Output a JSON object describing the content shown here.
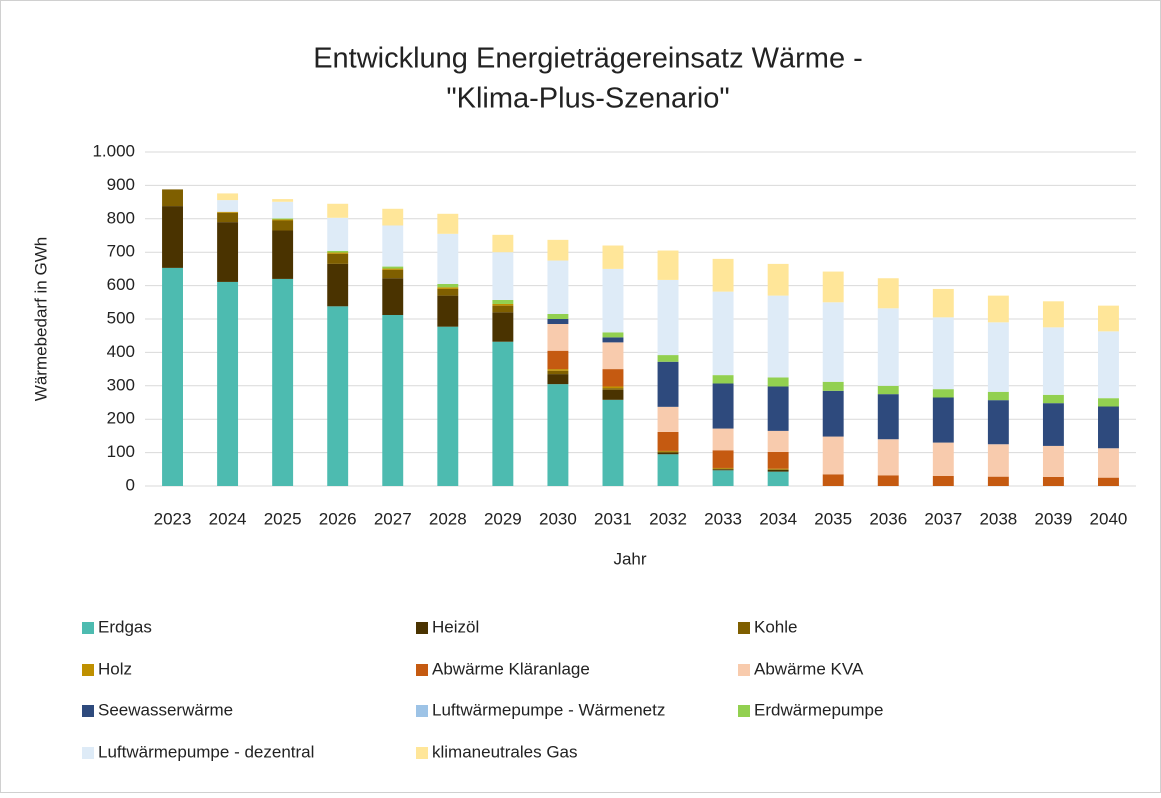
{
  "chart_data": {
    "type": "stacked_bar",
    "title": [
      "Entwicklung Energieträgereinsatz Wärme -",
      "\"Klima-Plus-Szenario\""
    ],
    "x_label": "Jahr",
    "y_label": "Wärmebedarf in GWh",
    "categories": [
      "2023",
      "2024",
      "2025",
      "2026",
      "2027",
      "2028",
      "2029",
      "2030",
      "2031",
      "2032",
      "2033",
      "2034",
      "2035",
      "2036",
      "2037",
      "2038",
      "2039",
      "2040"
    ],
    "ylim": [
      0,
      1000
    ],
    "yticks": [
      0,
      100,
      200,
      300,
      400,
      500,
      600,
      700,
      800,
      900,
      {
        "value": 1000,
        "label": "1.000"
      }
    ],
    "grid": true,
    "legend": "bottom",
    "series": [
      {
        "name": "Erdgas",
        "color": "#4dbbb0",
        "values": [
          653,
          611,
          620,
          538,
          512,
          477,
          432,
          305,
          258,
          95,
          47,
          43,
          0,
          0,
          0,
          0,
          0,
          0
        ]
      },
      {
        "name": "Heizöl",
        "color": "#4a3300",
        "values": [
          185,
          179,
          145,
          127,
          110,
          93,
          88,
          30,
          30,
          5,
          3,
          5,
          0,
          0,
          0,
          0,
          0,
          0
        ]
      },
      {
        "name": "Kohle",
        "color": "#7f5f00",
        "values": [
          50,
          28,
          30,
          30,
          25,
          20,
          20,
          10,
          5,
          3,
          2,
          2,
          0,
          0,
          0,
          0,
          0,
          0
        ]
      },
      {
        "name": "Holz",
        "color": "#bf9000",
        "values": [
          0,
          3,
          3,
          4,
          4,
          5,
          5,
          5,
          5,
          2,
          2,
          2,
          0,
          0,
          0,
          0,
          0,
          0
        ]
      },
      {
        "name": "Abwärme Kläranlage",
        "color": "#c55a11",
        "values": [
          0,
          0,
          0,
          0,
          0,
          0,
          0,
          55,
          52,
          57,
          53,
          50,
          35,
          32,
          30,
          28,
          27,
          25
        ]
      },
      {
        "name": "Abwärme KVA",
        "color": "#f8cbad",
        "values": [
          0,
          0,
          0,
          0,
          0,
          0,
          0,
          80,
          80,
          75,
          65,
          63,
          113,
          108,
          100,
          97,
          93,
          88
        ]
      },
      {
        "name": "Seewasserwärme",
        "color": "#2e4a7d",
        "values": [
          0,
          0,
          0,
          0,
          0,
          0,
          0,
          15,
          15,
          135,
          135,
          133,
          137,
          135,
          135,
          132,
          128,
          125
        ]
      },
      {
        "name": "Luftwärmepumpe - Wärmenetz",
        "color": "#9dc3e6",
        "values": [
          0,
          0,
          0,
          0,
          0,
          0,
          0,
          0,
          0,
          0,
          0,
          0,
          0,
          0,
          0,
          0,
          0,
          0
        ]
      },
      {
        "name": "Erdwärmepumpe",
        "color": "#92d050",
        "values": [
          0,
          0,
          3,
          5,
          6,
          10,
          12,
          15,
          15,
          20,
          25,
          27,
          27,
          25,
          25,
          25,
          25,
          25
        ]
      },
      {
        "name": "Luftwärmepumpe - dezentral",
        "color": "#deebf7",
        "values": [
          0,
          35,
          50,
          99,
          123,
          150,
          143,
          160,
          190,
          225,
          250,
          245,
          238,
          232,
          215,
          208,
          202,
          200
        ]
      },
      {
        "name": "klimaneutrales Gas",
        "color": "#ffe699",
        "values": [
          0,
          20,
          8,
          42,
          50,
          60,
          52,
          62,
          70,
          88,
          98,
          95,
          92,
          90,
          85,
          80,
          78,
          77
        ]
      }
    ]
  }
}
